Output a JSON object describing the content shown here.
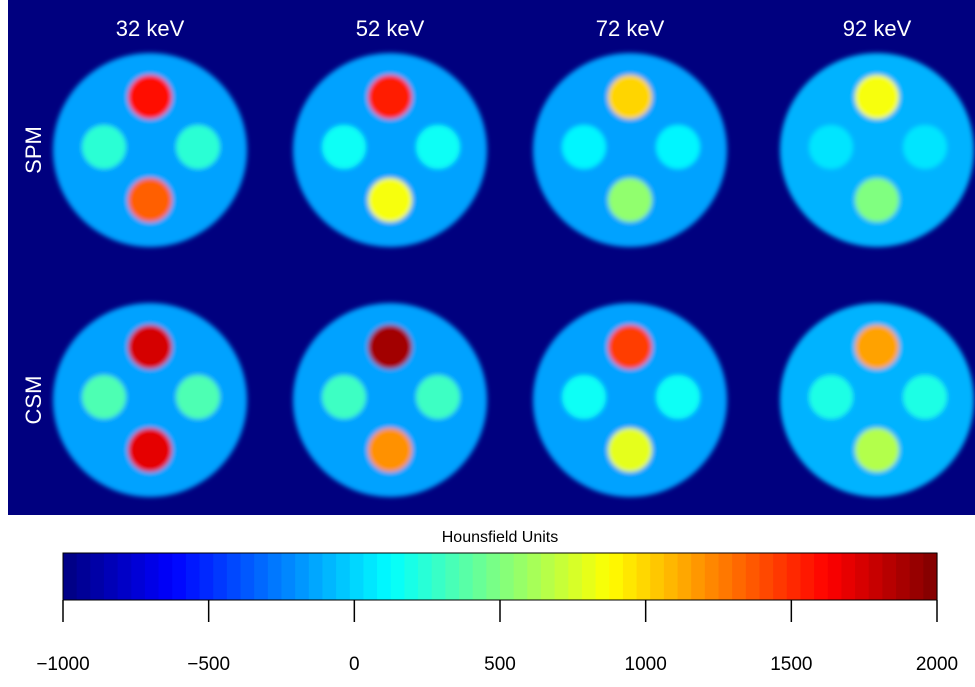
{
  "chart_data": {
    "type": "image-grid",
    "columns": [
      "32 keV",
      "52 keV",
      "72 keV",
      "92 keV"
    ],
    "rows": [
      "SPM",
      "CSM"
    ],
    "values": [
      [
        [
          -150,
          1600,
          1350,
          250,
          250
        ],
        [
          -150,
          1550,
          850,
          150,
          150
        ],
        [
          -150,
          1000,
          550,
          100,
          100
        ],
        [
          -100,
          850,
          500,
          50,
          50
        ]
      ],
      [
        [
          -150,
          1750,
          1700,
          350,
          350
        ],
        [
          -150,
          1900,
          1200,
          300,
          300
        ],
        [
          -150,
          1450,
          800,
          150,
          150
        ],
        [
          -100,
          1150,
          650,
          200,
          200
        ]
      ]
    ],
    "colorbar_label": "Hounsfield Units",
    "xlim": [
      -1000,
      2000
    ],
    "xticks": [
      {
        "value": -1000,
        "label": "−1000"
      },
      {
        "value": -500,
        "label": "−500"
      },
      0,
      500,
      1000,
      1500,
      2000
    ]
  }
}
